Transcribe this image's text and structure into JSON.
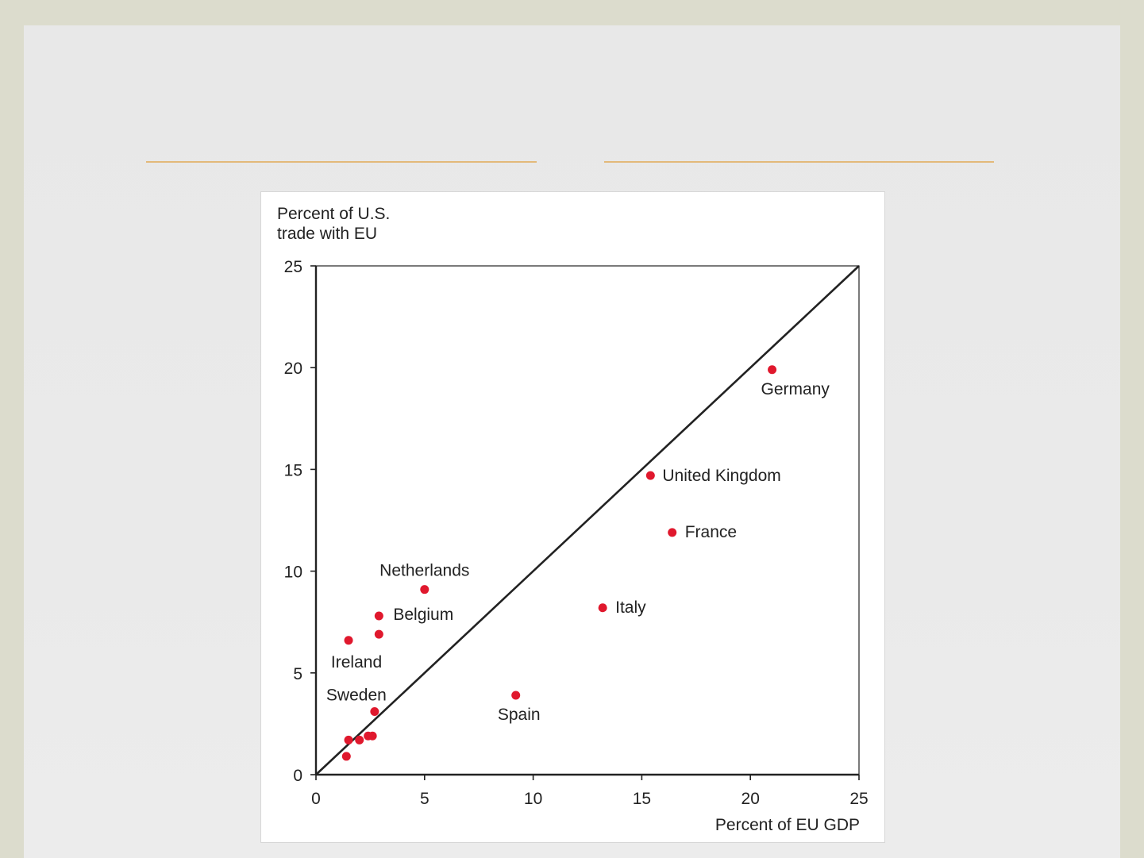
{
  "chart_data": {
    "type": "scatter",
    "ylabel_lines": [
      "Percent of U.S.",
      "trade with EU"
    ],
    "xlabel": "Percent of EU GDP",
    "xlim": [
      0,
      25
    ],
    "ylim": [
      0,
      25
    ],
    "xticks": [
      0,
      5,
      10,
      15,
      20,
      25
    ],
    "yticks": [
      0,
      5,
      10,
      15,
      20,
      25
    ],
    "reference_line": {
      "from": [
        0,
        0
      ],
      "to": [
        25,
        25
      ]
    },
    "point_color": "#e0182d",
    "points": [
      {
        "label": "Germany",
        "x": 21.0,
        "y": 19.9
      },
      {
        "label": "United Kingdom",
        "x": 15.4,
        "y": 14.7
      },
      {
        "label": "France",
        "x": 16.4,
        "y": 11.9
      },
      {
        "label": "Italy",
        "x": 13.2,
        "y": 8.2
      },
      {
        "label": "Netherlands",
        "x": 5.0,
        "y": 9.1
      },
      {
        "label": "Belgium",
        "x": 2.9,
        "y": 7.8
      },
      {
        "label": "",
        "x": 2.9,
        "y": 6.9
      },
      {
        "label": "Ireland",
        "x": 1.5,
        "y": 6.6
      },
      {
        "label": "Spain",
        "x": 9.2,
        "y": 3.9
      },
      {
        "label": "Sweden",
        "x": 2.7,
        "y": 3.1
      },
      {
        "label": "",
        "x": 1.5,
        "y": 1.7
      },
      {
        "label": "",
        "x": 2.0,
        "y": 1.7
      },
      {
        "label": "",
        "x": 2.4,
        "y": 1.9
      },
      {
        "label": "",
        "x": 2.6,
        "y": 1.9
      },
      {
        "label": "",
        "x": 1.4,
        "y": 0.9
      }
    ]
  }
}
